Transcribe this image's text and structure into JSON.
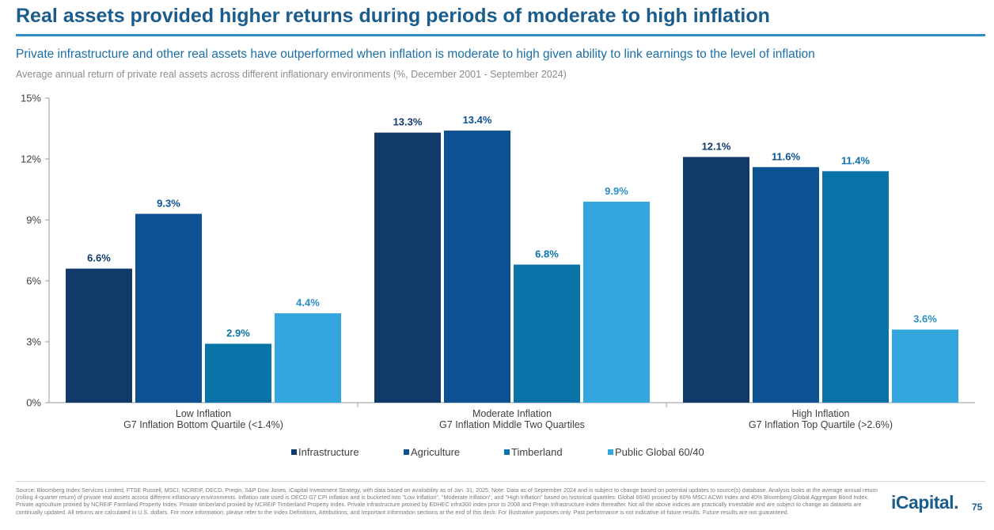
{
  "header": {
    "title": "Real assets provided higher returns during periods of moderate to high inflation",
    "subtitle": "Private infrastructure and other real assets have outperformed when inflation is moderate to high given ability to link earnings to the level of inflation",
    "caption": "Average annual return of private real assets across different inflationary environments (%, December 2001 - September 2024)"
  },
  "chart_data": {
    "type": "bar",
    "categories": [
      [
        "Low Inflation",
        "G7 Inflation Bottom Quartile (<1.4%)"
      ],
      [
        "Moderate Inflation",
        "G7 Inflation Middle Two Quartiles"
      ],
      [
        "High Inflation",
        "G7 Inflation Top Quartile (>2.6%)"
      ]
    ],
    "series": [
      {
        "name": "Infrastructure",
        "values": [
          6.6,
          13.3,
          12.1
        ],
        "labels": [
          "6.6%",
          "13.3%",
          "12.1%"
        ],
        "color": "#0f3a6a"
      },
      {
        "name": "Agriculture",
        "values": [
          9.3,
          13.4,
          11.6
        ],
        "labels": [
          "9.3%",
          "13.4%",
          "11.6%"
        ],
        "color": "#0c5293"
      },
      {
        "name": "Timberland",
        "values": [
          2.9,
          6.8,
          11.4
        ],
        "labels": [
          "2.9%",
          "6.8%",
          "11.4%"
        ],
        "color": "#0a73a8"
      },
      {
        "name": "Public Global 60/40",
        "values": [
          4.4,
          9.9,
          3.6
        ],
        "labels": [
          "4.4%",
          "9.9%",
          "3.6%"
        ],
        "color": "#33a6dd"
      }
    ],
    "yticks": [
      0,
      3,
      6,
      9,
      12,
      15
    ],
    "ytick_labels": [
      "0%",
      "3%",
      "6%",
      "9%",
      "12%",
      "15%"
    ],
    "ylim": [
      0,
      15
    ],
    "grid": false,
    "legend_position": "bottom-center"
  },
  "footer": {
    "source": "Source: Bloomberg Index Services Limited, FTSE Russell, MSCI, NCREIF, OECD, Preqin, S&P Dow Jones, iCapital Investment Strategy, with data based on availability as of Jan. 31, 2025. Note: Data as of September 2024 and is subject to change based on potential updates to source(s) database. Analysis looks at the average annual return (rolling 4-quarter return) of private real assets across different inflationary environments. Inflation rate used is OECD G7 CPI inflation and is bucketed into \"Low Inflation\", \"Moderate Inflation\", and \"High Inflation\" based on historical quartiles. Global 60/40 proxied by 60% MSCI ACWI Index and 40% Bloomberg Global Aggregate Bond Index. Private agriculture proxied by NCREIF Farmland Property Index. Private timberland proxied by NCREIF Timberland Property Index. Private infrastructure proxied by EDHEC infra300 index prior to 2008 and Preqin Infrastructure index thereafter. Not all the above indices are practically investable and are subject to change as datasets are continually updated. All returns are calculated in U.S. dollars. For more information, please refer to the Index Definitions, Attributions, and Important Information sections at the end of this deck. For illustrative purposes only. Past performance is not indicative of future results. Future results are not guaranteed.",
    "logo": "iCapital.",
    "page_number": "75"
  }
}
